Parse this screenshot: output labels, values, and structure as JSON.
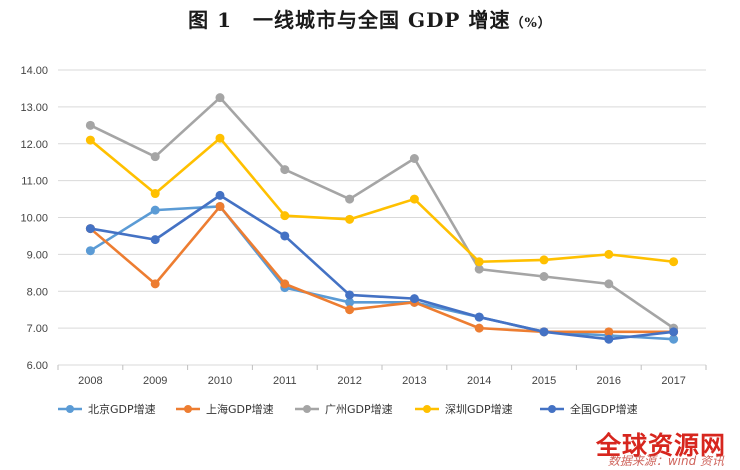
{
  "title": "图 1　一线城市与全国 GDP 增速",
  "title_unit": "（%）",
  "watermark": "全球资源网",
  "source": "数据来源：wind 资讯",
  "chart_data": {
    "type": "line",
    "title": "图 1　一线城市与全国 GDP 增速（%）",
    "xlabel": "",
    "ylabel": "",
    "categories": [
      "2008",
      "2009",
      "2010",
      "2011",
      "2012",
      "2013",
      "2014",
      "2015",
      "2016",
      "2017"
    ],
    "ylim": [
      6,
      14
    ],
    "yticks": [
      "6.00",
      "7.00",
      "8.00",
      "9.00",
      "10.00",
      "11.00",
      "12.00",
      "13.00",
      "14.00"
    ],
    "grid": true,
    "legend_position": "bottom",
    "series": [
      {
        "name": "北京GDP增速",
        "color": "#5b9bd5",
        "values": [
          9.1,
          10.2,
          10.3,
          8.1,
          7.7,
          7.7,
          7.3,
          6.9,
          6.8,
          6.7
        ]
      },
      {
        "name": "上海GDP增速",
        "color": "#ed7d31",
        "values": [
          9.7,
          8.2,
          10.3,
          8.2,
          7.5,
          7.7,
          7.0,
          6.9,
          6.9,
          6.9
        ]
      },
      {
        "name": "广州GDP增速",
        "color": "#a5a5a5",
        "values": [
          12.5,
          11.65,
          13.25,
          11.3,
          10.5,
          11.6,
          8.6,
          8.4,
          8.2,
          7.0
        ]
      },
      {
        "name": "深圳GDP增速",
        "color": "#ffc000",
        "values": [
          12.1,
          10.65,
          12.15,
          10.05,
          9.95,
          10.5,
          8.8,
          8.85,
          9.0,
          8.8
        ]
      },
      {
        "name": "全国GDP增速",
        "color": "#4472c4",
        "values": [
          9.7,
          9.4,
          10.6,
          9.5,
          7.9,
          7.8,
          7.3,
          6.9,
          6.7,
          6.9
        ]
      }
    ]
  }
}
